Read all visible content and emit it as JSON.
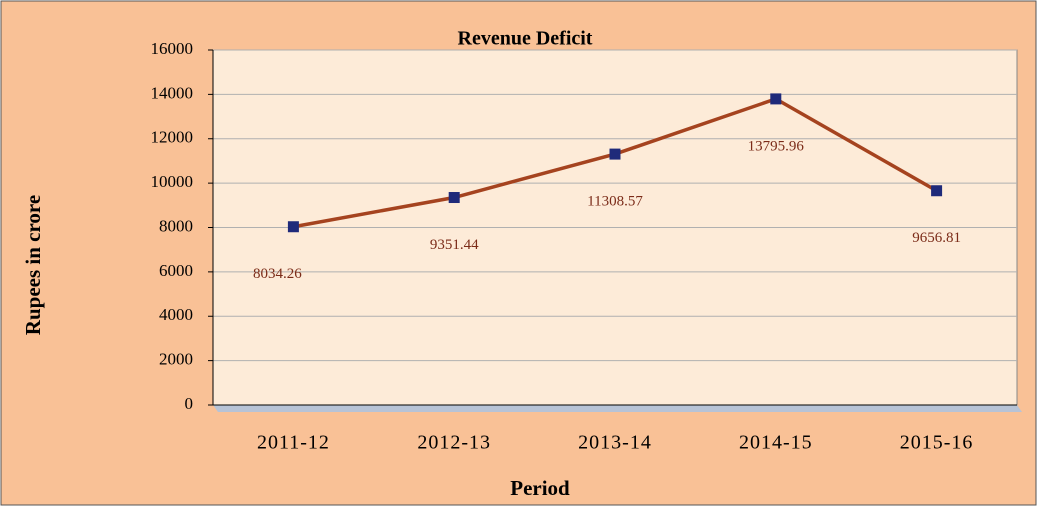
{
  "chart_data": {
    "type": "line",
    "title": "Revenue Deficit",
    "x_label": "Period",
    "y_label": "Rupees in crore",
    "categories": [
      "2011-12",
      "2012-13",
      "2013-14",
      "2014-15",
      "2015-16"
    ],
    "series": [
      {
        "name": "Revenue Deficit",
        "color": "#a5431f",
        "marker_color": "#1f2a7a",
        "values": [
          8034.26,
          9351.44,
          11308.57,
          13795.96,
          9656.81
        ]
      }
    ],
    "ylim": [
      0,
      16000
    ],
    "yticks": [
      0,
      2000,
      4000,
      6000,
      8000,
      10000,
      12000,
      14000,
      16000
    ],
    "grid": true
  }
}
